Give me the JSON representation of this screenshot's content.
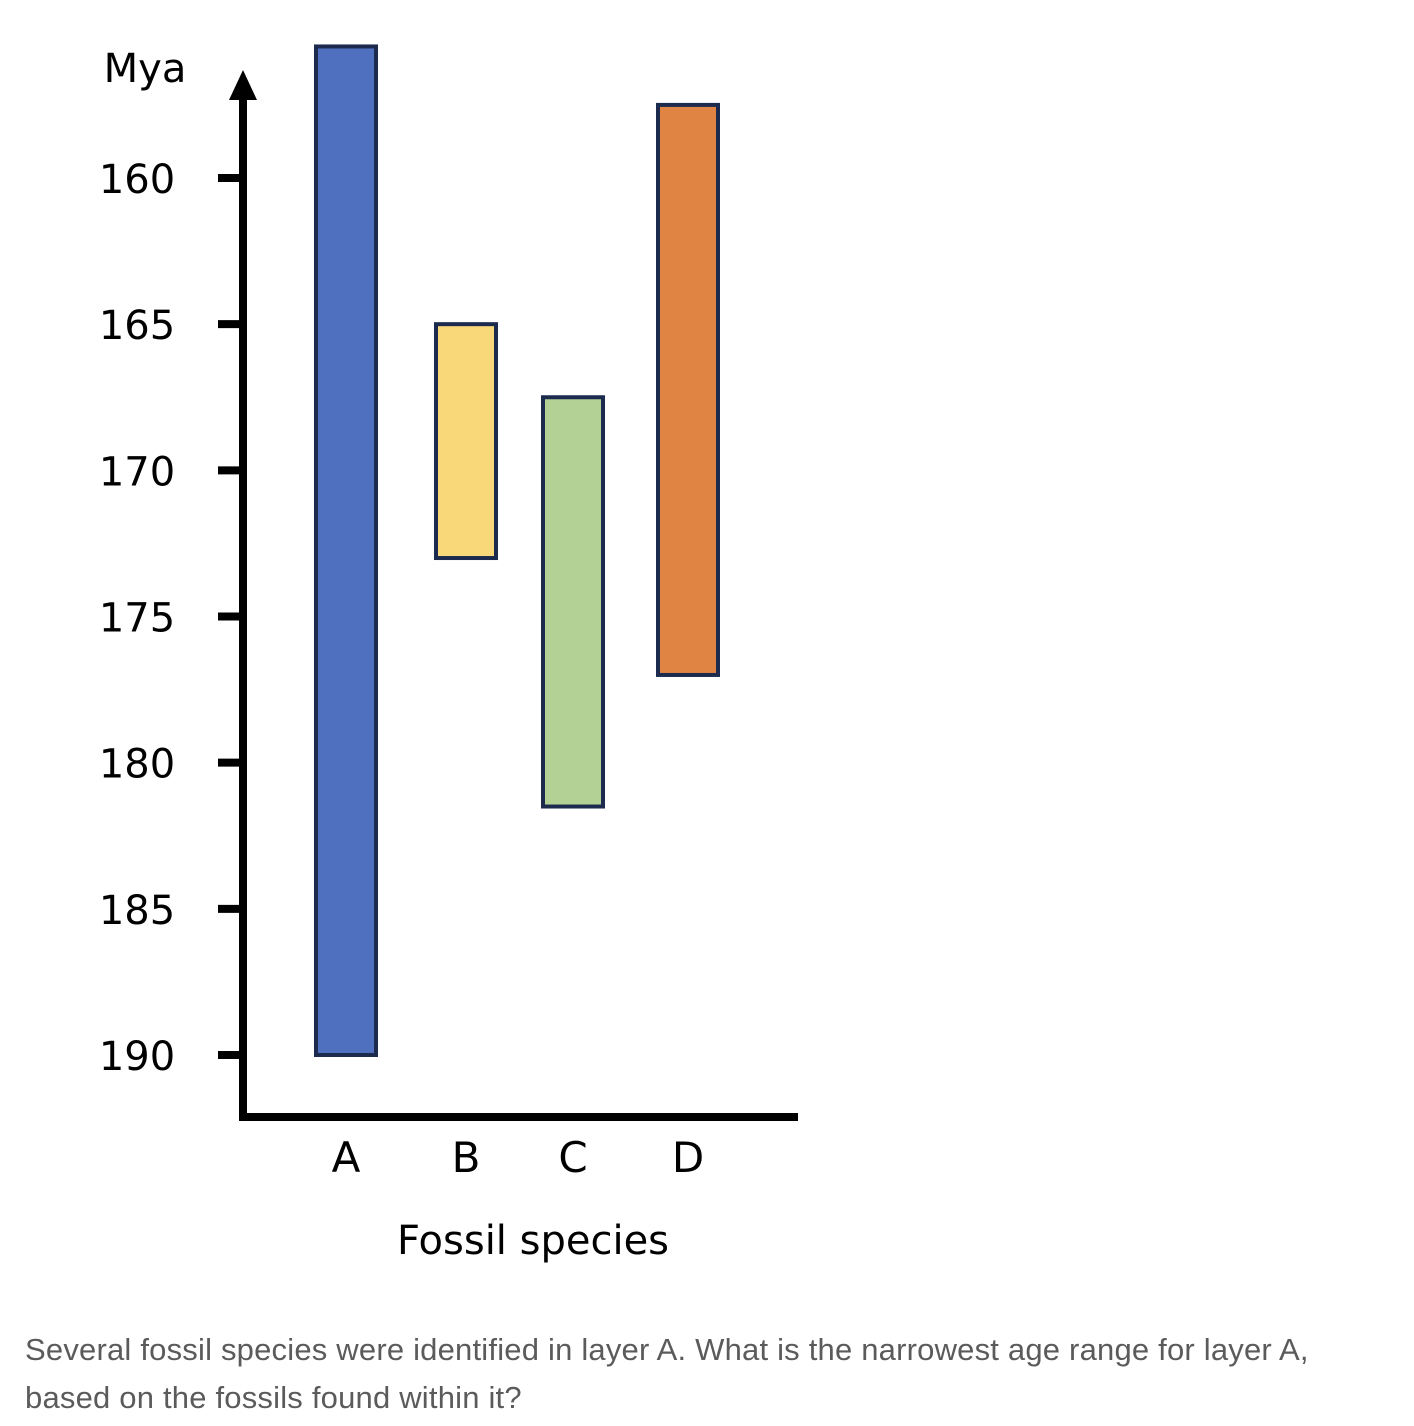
{
  "chart_data": {
    "type": "range-bar",
    "ylabel": "Mya",
    "xlabel": "Fossil species",
    "y_ticks": [
      "160",
      "165",
      "170",
      "175",
      "180",
      "185",
      "190"
    ],
    "y_reversed": true,
    "y_range": [
      156,
      192
    ],
    "grid": false,
    "legend": "none",
    "categories": [
      "A",
      "B",
      "C",
      "D"
    ],
    "ranges": [
      {
        "category": "A",
        "from": 155.5,
        "to": 190,
        "color": "#4f6fbf"
      },
      {
        "category": "B",
        "from": 165,
        "to": 173,
        "color": "#f8d878"
      },
      {
        "category": "C",
        "from": 167.5,
        "to": 181.5,
        "color": "#b3d194"
      },
      {
        "category": "D",
        "from": 157.5,
        "to": 177,
        "color": "#e08444"
      }
    ],
    "outline_color": "#1c2a4e"
  },
  "question": {
    "text": "Several fossil species were identified in layer A. What is the narrowest age range for layer A, based on the fossils found within it?"
  }
}
